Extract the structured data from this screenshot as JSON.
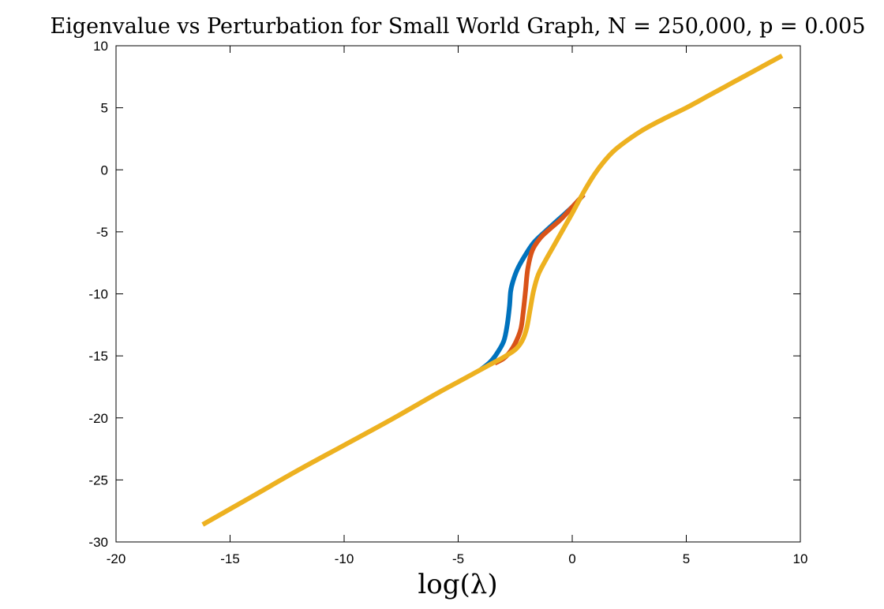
{
  "chart_data": {
    "type": "line",
    "title": "Eigenvalue vs Perturbation for Small World Graph, N = 250,000, p = 0.005",
    "xlabel": "log(λ)",
    "ylabel": "",
    "xlim": [
      -20,
      10
    ],
    "ylim": [
      -30,
      10
    ],
    "xticks": [
      -20,
      -15,
      -10,
      -5,
      0,
      5,
      10
    ],
    "yticks": [
      10,
      5,
      0,
      -5,
      -10,
      -15,
      -20,
      -25,
      -30
    ],
    "grid": false,
    "legend": "none",
    "series": [
      {
        "color": "#0072BD",
        "x": [
          -4.0,
          -3.6,
          -3.3,
          -3.0,
          -2.85,
          -2.75,
          -2.7,
          -2.6,
          -2.4,
          -2.1,
          -1.7,
          -1.2,
          -0.6,
          0.0,
          0.5
        ],
        "y": [
          -16.1,
          -15.5,
          -14.8,
          -13.8,
          -12.5,
          -11.0,
          -9.8,
          -9.0,
          -8.0,
          -7.0,
          -5.9,
          -5.0,
          -4.0,
          -3.0,
          -2.0
        ]
      },
      {
        "color": "#D95319",
        "x": [
          -3.4,
          -3.0,
          -2.7,
          -2.45,
          -2.25,
          -2.15,
          -2.05,
          -1.95,
          -1.75,
          -1.4,
          -1.0,
          -0.5,
          0.0,
          0.5
        ],
        "y": [
          -15.6,
          -15.2,
          -14.6,
          -13.8,
          -12.8,
          -11.5,
          -9.8,
          -8.0,
          -6.5,
          -5.5,
          -4.8,
          -4.0,
          -3.0,
          -2.0
        ]
      },
      {
        "color": "#EDB120",
        "x": [
          -16.2,
          -14.0,
          -12.0,
          -10.0,
          -8.0,
          -6.0,
          -5.0,
          -4.0,
          -3.5,
          -3.0,
          -2.5,
          -2.2,
          -2.0,
          -1.85,
          -1.7,
          -1.5,
          -1.2,
          -0.8,
          -0.4,
          0.0,
          0.5,
          1.0,
          1.5,
          2.0,
          3.0,
          4.0,
          5.0,
          6.0,
          7.0,
          8.0,
          9.2
        ],
        "y": [
          -28.6,
          -26.3,
          -24.2,
          -22.2,
          -20.2,
          -18.1,
          -17.1,
          -16.1,
          -15.6,
          -15.1,
          -14.5,
          -13.8,
          -12.8,
          -11.3,
          -9.8,
          -8.5,
          -7.4,
          -6.1,
          -4.8,
          -3.5,
          -1.8,
          -0.3,
          0.9,
          1.8,
          3.1,
          4.1,
          5.0,
          6.0,
          7.0,
          8.0,
          9.2
        ]
      }
    ]
  }
}
